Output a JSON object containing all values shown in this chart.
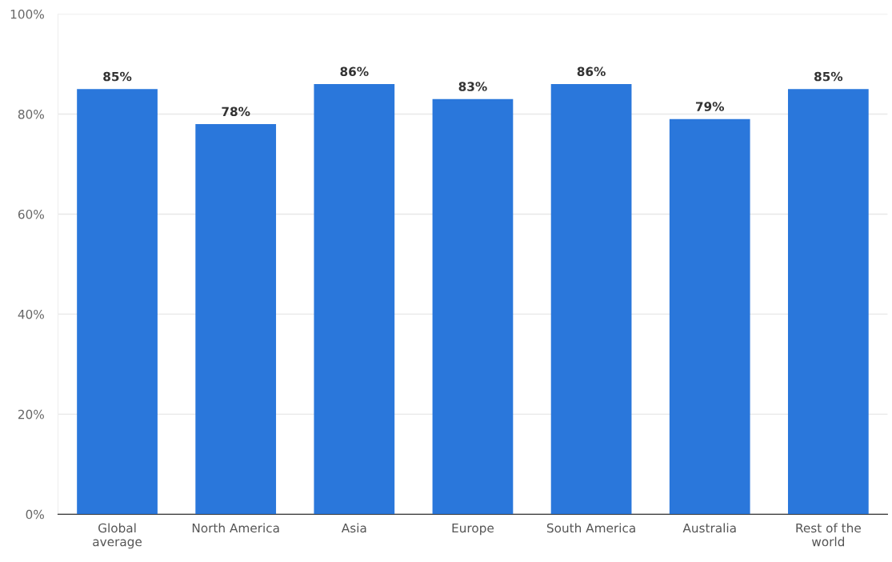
{
  "chart_data": {
    "type": "bar",
    "categories": [
      "Global\naverage",
      "North America",
      "Asia",
      "Europe",
      "South America",
      "Australia",
      "Rest of the\nworld"
    ],
    "values": [
      85,
      78,
      86,
      83,
      86,
      79,
      85
    ],
    "value_labels": [
      "85%",
      "78%",
      "86%",
      "83%",
      "86%",
      "79%",
      "85%"
    ],
    "color": "#2a77db",
    "ylim": [
      0,
      100
    ],
    "yticks": [
      {
        "value": 0,
        "label": "0%"
      },
      {
        "value": 20,
        "label": "20%"
      },
      {
        "value": 40,
        "label": "40%"
      },
      {
        "value": 60,
        "label": "60%"
      },
      {
        "value": 80,
        "label": "80%"
      },
      {
        "value": 100,
        "label": "100%"
      }
    ],
    "grid": "y"
  }
}
